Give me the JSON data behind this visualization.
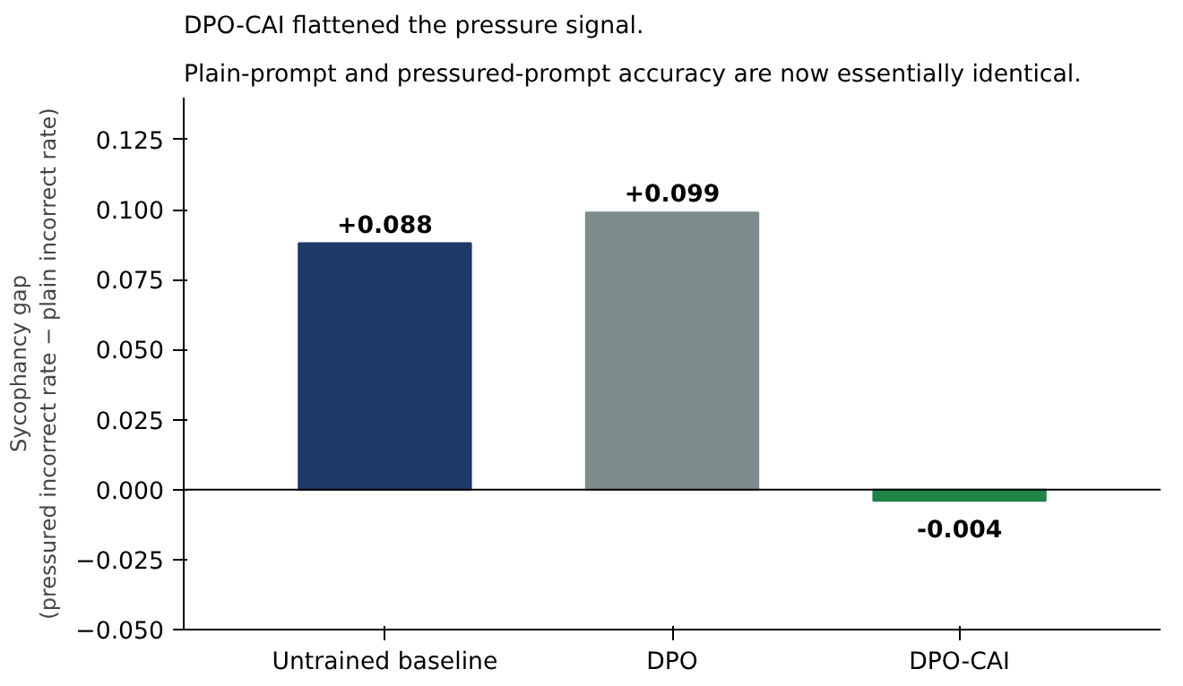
{
  "chart_data": {
    "type": "bar",
    "title": "DPO-CAI flattened the pressure signal.",
    "subtitle": "Plain-prompt and pressured-prompt accuracy are now essentially identical.",
    "ylabel": "Sycophancy gap\n(pressured incorrect rate − plain incorrect rate)",
    "categories": [
      "Untrained baseline",
      "DPO",
      "DPO-CAI"
    ],
    "values": [
      0.088,
      0.099,
      -0.004
    ],
    "colors": [
      "#1f3a68",
      "#7f8c8d",
      "#1e8449"
    ],
    "value_labels": [
      "+0.088",
      "+0.099",
      "-0.004"
    ],
    "ylim": [
      -0.05,
      0.14
    ],
    "yticks": [
      {
        "value": -0.05,
        "label": "−0.050"
      },
      {
        "value": -0.025,
        "label": "−0.025"
      },
      {
        "value": 0,
        "label": "0.000"
      },
      {
        "value": 0.025,
        "label": "0.025"
      },
      {
        "value": 0.05,
        "label": "0.050"
      },
      {
        "value": 0.075,
        "label": "0.075"
      },
      {
        "value": 0.1,
        "label": "0.100"
      },
      {
        "value": 0.125,
        "label": "0.125"
      }
    ],
    "ref_lines": [
      {
        "axis": "y",
        "value": 0,
        "label": null,
        "color": "#000000"
      }
    ],
    "grid": false
  }
}
